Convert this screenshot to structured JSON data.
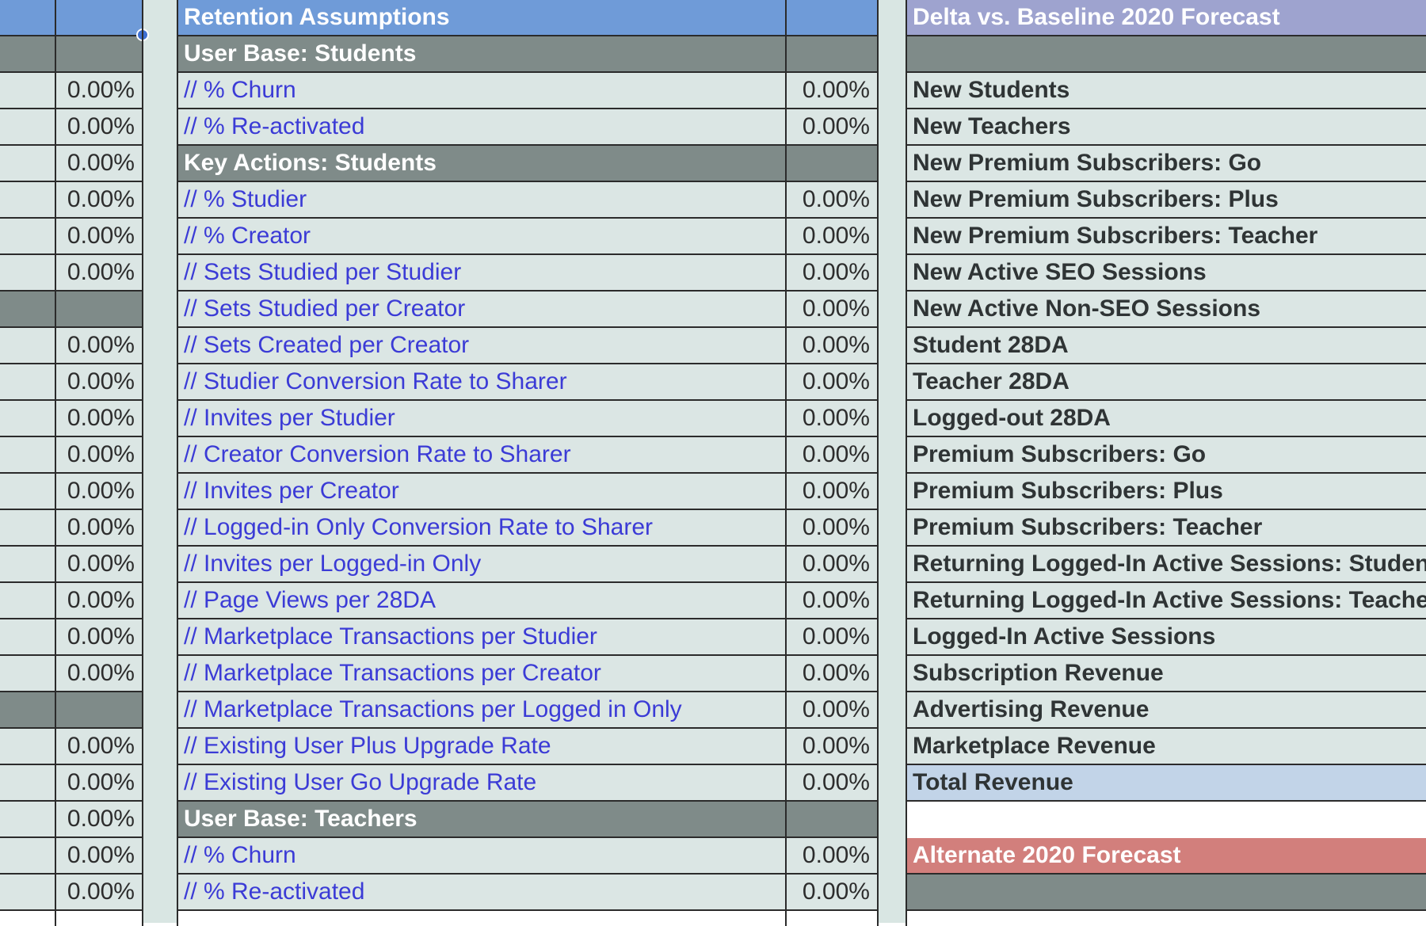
{
  "left_column": {
    "rows": [
      {
        "kind": "header",
        "value": ""
      },
      {
        "kind": "section",
        "value": ""
      },
      {
        "kind": "value",
        "value": "0.00%"
      },
      {
        "kind": "value",
        "value": "0.00%"
      },
      {
        "kind": "value",
        "value": "0.00%"
      },
      {
        "kind": "value",
        "value": "0.00%"
      },
      {
        "kind": "value",
        "value": "0.00%"
      },
      {
        "kind": "value",
        "value": "0.00%"
      },
      {
        "kind": "section",
        "value": ""
      },
      {
        "kind": "value",
        "value": "0.00%"
      },
      {
        "kind": "value",
        "value": "0.00%"
      },
      {
        "kind": "value",
        "value": "0.00%"
      },
      {
        "kind": "value",
        "value": "0.00%"
      },
      {
        "kind": "value",
        "value": "0.00%"
      },
      {
        "kind": "value",
        "value": "0.00%"
      },
      {
        "kind": "value",
        "value": "0.00%"
      },
      {
        "kind": "value",
        "value": "0.00%"
      },
      {
        "kind": "value",
        "value": "0.00%"
      },
      {
        "kind": "value",
        "value": "0.00%"
      },
      {
        "kind": "section",
        "value": ""
      },
      {
        "kind": "value",
        "value": "0.00%"
      },
      {
        "kind": "value",
        "value": "0.00%"
      },
      {
        "kind": "value",
        "value": "0.00%"
      },
      {
        "kind": "value",
        "value": "0.00%"
      },
      {
        "kind": "value",
        "value": "0.00%"
      }
    ]
  },
  "assumptions": {
    "title": "Retention Assumptions",
    "rows": [
      {
        "kind": "section",
        "label": "User Base: Students",
        "value": ""
      },
      {
        "kind": "item",
        "label": "// % Churn",
        "value": "0.00%"
      },
      {
        "kind": "item",
        "label": "// % Re-activated",
        "value": "0.00%"
      },
      {
        "kind": "section",
        "label": "Key Actions: Students",
        "value": ""
      },
      {
        "kind": "item",
        "label": "// % Studier",
        "value": "0.00%"
      },
      {
        "kind": "item",
        "label": "// % Creator",
        "value": "0.00%"
      },
      {
        "kind": "item",
        "label": "// Sets Studied per Studier",
        "value": "0.00%"
      },
      {
        "kind": "item",
        "label": "// Sets Studied per Creator",
        "value": "0.00%"
      },
      {
        "kind": "item",
        "label": "// Sets Created per Creator",
        "value": "0.00%"
      },
      {
        "kind": "item",
        "label": "// Studier Conversion Rate to Sharer",
        "value": "0.00%"
      },
      {
        "kind": "item",
        "label": "// Invites per Studier",
        "value": "0.00%"
      },
      {
        "kind": "item",
        "label": "// Creator Conversion Rate to Sharer",
        "value": "0.00%"
      },
      {
        "kind": "item",
        "label": "// Invites per Creator",
        "value": "0.00%"
      },
      {
        "kind": "item",
        "label": "// Logged-in Only Conversion Rate to Sharer",
        "value": "0.00%"
      },
      {
        "kind": "item",
        "label": "// Invites per Logged-in Only",
        "value": "0.00%"
      },
      {
        "kind": "item",
        "label": "// Page Views per 28DA",
        "value": "0.00%"
      },
      {
        "kind": "item",
        "label": "// Marketplace Transactions per Studier",
        "value": "0.00%"
      },
      {
        "kind": "item",
        "label": "// Marketplace Transactions per Creator",
        "value": "0.00%"
      },
      {
        "kind": "item",
        "label": "// Marketplace Transactions per Logged in Only",
        "value": "0.00%"
      },
      {
        "kind": "item",
        "label": "// Existing User Plus Upgrade Rate",
        "value": "0.00%"
      },
      {
        "kind": "item",
        "label": "// Existing User Go Upgrade Rate",
        "value": "0.00%"
      },
      {
        "kind": "section",
        "label": "User Base: Teachers",
        "value": ""
      },
      {
        "kind": "item",
        "label": "// % Churn",
        "value": "0.00%"
      },
      {
        "kind": "item",
        "label": "// % Re-activated",
        "value": "0.00%"
      }
    ]
  },
  "delta": {
    "title": "Delta vs. Baseline 2020 Forecast",
    "rows": [
      {
        "kind": "section",
        "label": ""
      },
      {
        "kind": "metric",
        "label": "New Students"
      },
      {
        "kind": "metric",
        "label": "New Teachers"
      },
      {
        "kind": "metric",
        "label": "New Premium Subscribers: Go"
      },
      {
        "kind": "metric",
        "label": "New Premium Subscribers: Plus"
      },
      {
        "kind": "metric",
        "label": "New Premium Subscribers: Teacher"
      },
      {
        "kind": "metric",
        "label": "New Active SEO Sessions"
      },
      {
        "kind": "metric",
        "label": "New Active Non-SEO Sessions"
      },
      {
        "kind": "metric",
        "label": "Student 28DA"
      },
      {
        "kind": "metric",
        "label": "Teacher 28DA"
      },
      {
        "kind": "metric",
        "label": "Logged-out 28DA"
      },
      {
        "kind": "metric",
        "label": "Premium Subscribers: Go"
      },
      {
        "kind": "metric",
        "label": "Premium Subscribers: Plus"
      },
      {
        "kind": "metric",
        "label": "Premium Subscribers: Teacher"
      },
      {
        "kind": "metric",
        "label": "Returning Logged-In Active Sessions: Student"
      },
      {
        "kind": "metric",
        "label": "Returning Logged-In Active Sessions: Teacher"
      },
      {
        "kind": "metric",
        "label": "Logged-In Active Sessions"
      },
      {
        "kind": "metric",
        "label": "Subscription Revenue"
      },
      {
        "kind": "metric",
        "label": "Advertising Revenue"
      },
      {
        "kind": "metric",
        "label": "Marketplace Revenue"
      },
      {
        "kind": "total",
        "label": "Total Revenue"
      },
      {
        "kind": "blank",
        "label": ""
      },
      {
        "kind": "header-red",
        "label": "Alternate 2020 Forecast"
      },
      {
        "kind": "section",
        "label": ""
      }
    ]
  },
  "colors": {
    "header_blue": "#6f9bd8",
    "header_purple": "#9ea3cf",
    "header_red": "#d27f7c",
    "section_gray": "#7f8b89",
    "cell_bg": "#dbe6e4",
    "label_blue": "#3b3bd6",
    "total_bg": "#c2d4e8"
  }
}
